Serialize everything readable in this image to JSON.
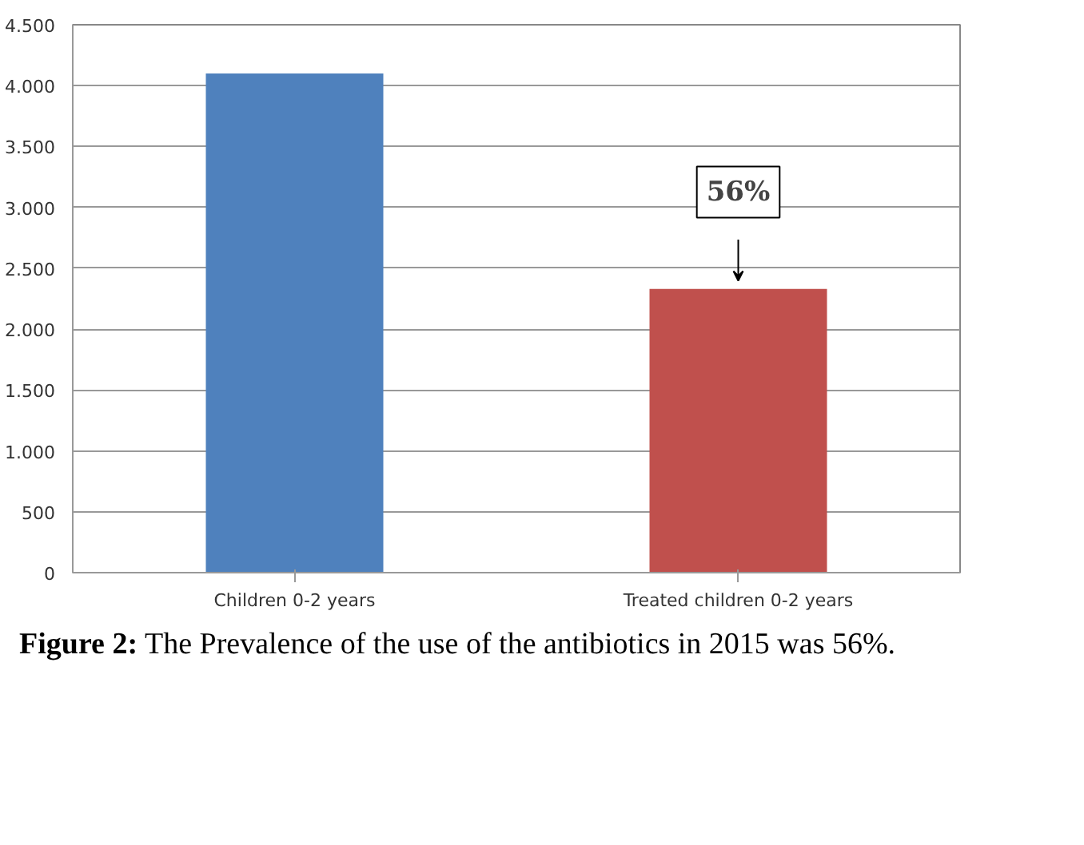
{
  "chart_data": {
    "type": "bar",
    "categories": [
      "Children 0-2 years",
      "Treated children 0-2 years"
    ],
    "values": [
      4100,
      2330
    ],
    "colors": [
      "#4f81bd",
      "#c0504d"
    ],
    "ylim": [
      0,
      4500
    ],
    "yticks": [
      0,
      {
        "value": 500,
        "label": "500"
      },
      {
        "value": 1000,
        "label": "1.000"
      },
      {
        "value": 1500,
        "label": "1.500"
      },
      {
        "value": 2000,
        "label": "2.000"
      },
      {
        "value": 2500,
        "label": "2.500"
      },
      {
        "value": 3000,
        "label": "3.000"
      },
      {
        "value": 3500,
        "label": "3.500"
      },
      {
        "value": 4000,
        "label": "4.000"
      },
      {
        "value": 4500,
        "label": "4.500"
      }
    ],
    "grid": "y",
    "annotations": [
      {
        "text": "56%",
        "x": "Treated children 0-2 years",
        "y": 2330
      },
      "Figure 2: The Prevalence of the use of the antibiotics in 2015 was 56%."
    ]
  }
}
